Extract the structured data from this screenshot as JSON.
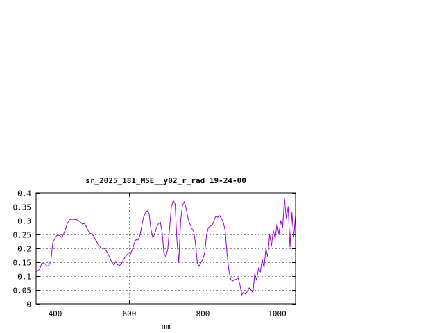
{
  "chart_data": {
    "type": "line",
    "title": "sr_2025_181_MSE__y02_r_rad 19-24-00",
    "xlabel": "nm",
    "ylabel": "",
    "xlim": [
      350,
      1050
    ],
    "ylim": [
      0,
      0.4
    ],
    "xticks": [
      400,
      600,
      800,
      1000
    ],
    "xtick_labels": [
      "400",
      "600",
      "800",
      "1000"
    ],
    "yticks": [
      0,
      0.05,
      0.1,
      0.15,
      0.2,
      0.25,
      0.3,
      0.35,
      0.4
    ],
    "ytick_labels": [
      "0",
      "0.05",
      "0.1",
      "0.15",
      "0.2",
      "0.25",
      "0.3",
      "0.35",
      "0.4"
    ],
    "grid": true,
    "legend": "none",
    "series": [
      {
        "color": "#9400d3",
        "x": [
          350,
          360,
          365,
          370,
          375,
          380,
          385,
          390,
          395,
          400,
          405,
          410,
          415,
          420,
          425,
          430,
          435,
          440,
          445,
          450,
          455,
          460,
          465,
          470,
          475,
          480,
          485,
          490,
          495,
          500,
          505,
          510,
          515,
          520,
          525,
          530,
          535,
          540,
          545,
          550,
          555,
          560,
          565,
          570,
          575,
          580,
          585,
          590,
          595,
          600,
          605,
          610,
          615,
          620,
          625,
          630,
          635,
          640,
          645,
          650,
          655,
          660,
          665,
          670,
          675,
          680,
          685,
          690,
          695,
          700,
          705,
          710,
          715,
          720,
          725,
          730,
          735,
          740,
          745,
          750,
          755,
          760,
          765,
          770,
          775,
          780,
          785,
          790,
          795,
          800,
          805,
          810,
          815,
          820,
          825,
          830,
          835,
          840,
          845,
          850,
          855,
          860,
          865,
          870,
          875,
          880,
          885,
          890,
          895,
          900,
          905,
          910,
          915,
          920,
          925,
          930,
          935,
          940,
          945,
          950,
          955,
          960,
          965,
          970,
          975,
          980,
          985,
          990,
          995,
          1000,
          1005,
          1010,
          1015,
          1020,
          1025,
          1030,
          1035,
          1040,
          1045,
          1050
        ],
        "y": [
          0.115,
          0.125,
          0.145,
          0.148,
          0.143,
          0.135,
          0.14,
          0.155,
          0.22,
          0.235,
          0.245,
          0.248,
          0.245,
          0.238,
          0.255,
          0.272,
          0.292,
          0.303,
          0.305,
          0.305,
          0.304,
          0.303,
          0.3,
          0.294,
          0.287,
          0.29,
          0.28,
          0.265,
          0.255,
          0.252,
          0.245,
          0.232,
          0.22,
          0.21,
          0.202,
          0.2,
          0.199,
          0.19,
          0.178,
          0.162,
          0.148,
          0.14,
          0.153,
          0.141,
          0.138,
          0.145,
          0.158,
          0.168,
          0.176,
          0.184,
          0.18,
          0.196,
          0.22,
          0.232,
          0.23,
          0.245,
          0.28,
          0.312,
          0.328,
          0.335,
          0.325,
          0.268,
          0.238,
          0.252,
          0.275,
          0.288,
          0.295,
          0.258,
          0.182,
          0.17,
          0.195,
          0.268,
          0.35,
          0.372,
          0.36,
          0.23,
          0.15,
          0.3,
          0.355,
          0.368,
          0.342,
          0.308,
          0.288,
          0.272,
          0.262,
          0.22,
          0.148,
          0.135,
          0.15,
          0.16,
          0.185,
          0.25,
          0.275,
          0.28,
          0.283,
          0.3,
          0.317,
          0.312,
          0.318,
          0.308,
          0.295,
          0.265,
          0.182,
          0.122,
          0.088,
          0.082,
          0.087,
          0.088,
          0.095,
          0.068,
          0.032,
          0.042,
          0.035,
          0.045,
          0.058,
          0.05,
          0.04,
          0.11,
          0.085,
          0.13,
          0.115,
          0.16,
          0.13,
          0.2,
          0.17,
          0.25,
          0.21,
          0.265,
          0.235,
          0.29,
          0.25,
          0.3,
          0.275,
          0.378,
          0.31,
          0.35,
          0.205,
          0.33,
          0.24,
          0.32
        ]
      }
    ]
  }
}
